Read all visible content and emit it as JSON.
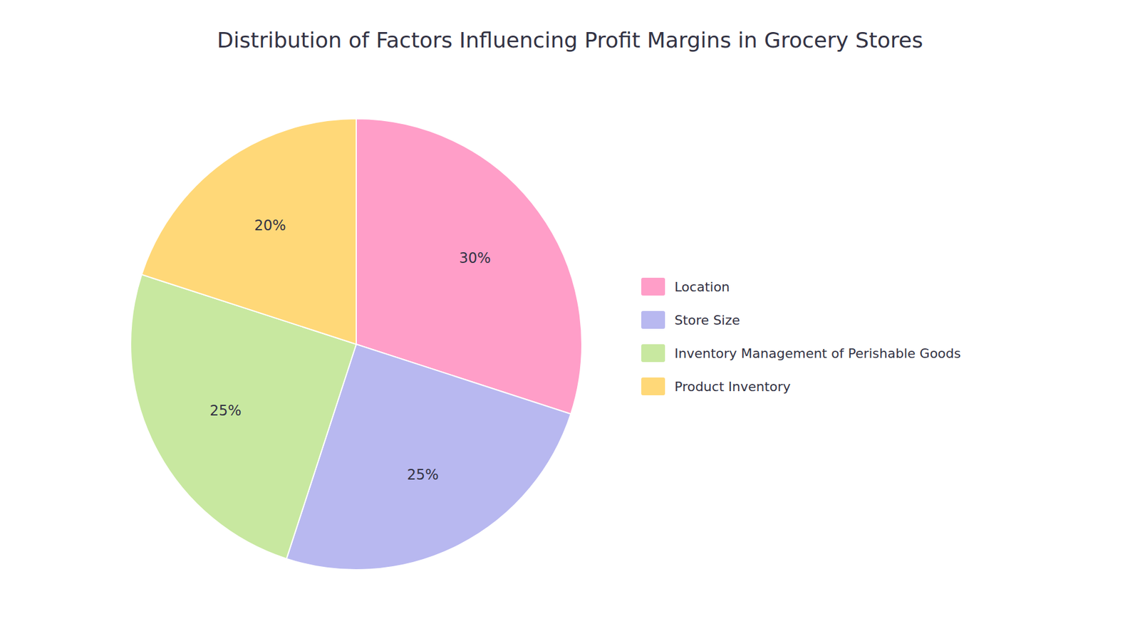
{
  "chart_data": {
    "type": "pie",
    "title": "Distribution of Factors Influencing Profit Margins in Grocery Stores",
    "categories": [
      "Location",
      "Store Size",
      "Inventory Management of Perishable Goods",
      "Product Inventory"
    ],
    "values": [
      30,
      25,
      25,
      20
    ],
    "value_labels": [
      "30%",
      "25%",
      "25%",
      "20%"
    ],
    "colors": [
      "#FF9EC8",
      "#B8B8F0",
      "#C8E8A0",
      "#FFD878"
    ],
    "data_labels": true,
    "legend": "right"
  }
}
